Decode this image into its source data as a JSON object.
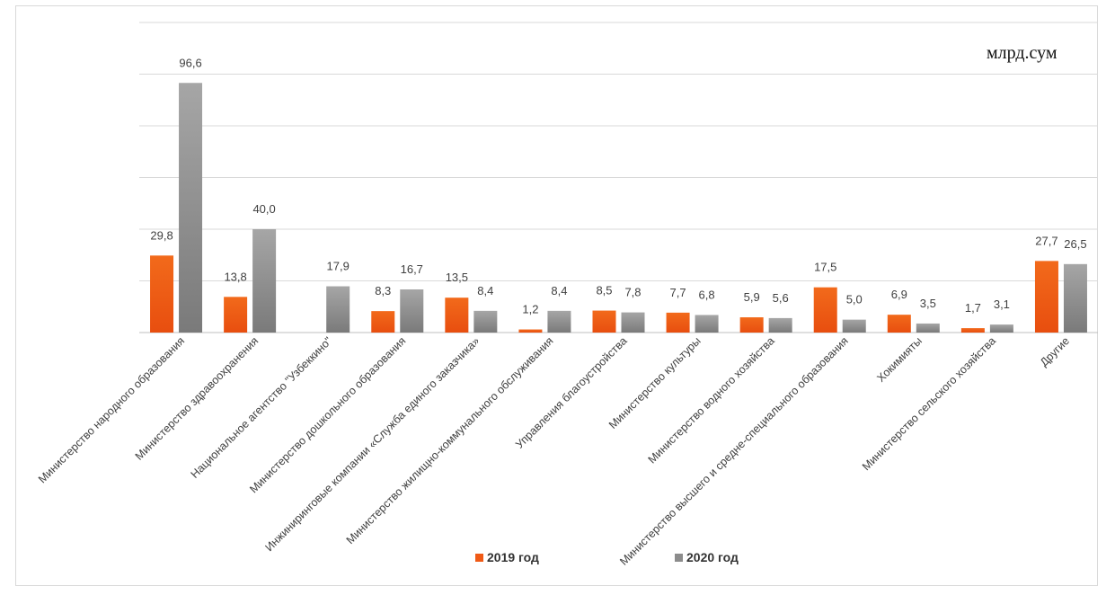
{
  "unit_label": "млрд.сум",
  "colors": {
    "series_2019": "#f05a16",
    "series_2020": "#8c8c8c",
    "grid": "#d9d9d9",
    "axis": "#bfbfbf",
    "text": "#404040"
  },
  "legend": {
    "items": [
      "2019 год",
      "2020 год"
    ],
    "placement": "bottom"
  },
  "chart_data": {
    "type": "bar",
    "title": "",
    "xlabel": "",
    "ylabel": "",
    "ylim": [
      0,
      120
    ],
    "grid": true,
    "categories": [
      "Министерство народного образования",
      "Министерство здравоохранения",
      "Национальное агентство \"Узбеккино\"",
      "Министерство дошкольного образования",
      "Инжиниринговые компании «Служба единого заказчика»",
      "Министерство жилищно-коммунального обслуживания",
      "Управления благоустройства",
      "Министерство культуры",
      "Министерство водного хозяйства",
      "Министерство высшего и средне-специального образования",
      "Хокимияты",
      "Министерство сельского хозяйства",
      "Другие"
    ],
    "series": [
      {
        "name": "2019 год",
        "values": [
          29.8,
          13.8,
          null,
          8.3,
          13.5,
          1.2,
          8.5,
          7.7,
          5.9,
          17.5,
          6.9,
          1.7,
          27.7
        ],
        "labels": [
          "29,8",
          "13,8",
          "",
          "8,3",
          "13,5",
          "1,2",
          "8,5",
          "7,7",
          "5,9",
          "17,5",
          "6,9",
          "1,7",
          "27,7"
        ]
      },
      {
        "name": "2020 год",
        "values": [
          96.6,
          40.0,
          17.9,
          16.7,
          8.4,
          8.4,
          7.8,
          6.8,
          5.6,
          5.0,
          3.5,
          3.1,
          26.5
        ],
        "labels": [
          "96,6",
          "40,0",
          "17,9",
          "16,7",
          "8,4",
          "8,4",
          "7,8",
          "6,8",
          "5,6",
          "5,0",
          "3,5",
          "3,1",
          "26,5"
        ]
      }
    ]
  }
}
